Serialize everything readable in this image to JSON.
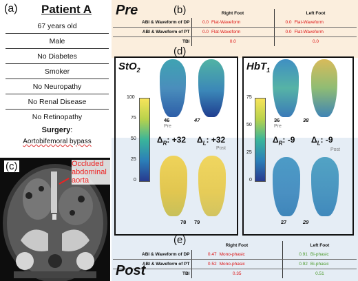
{
  "panel_a": {
    "label": "(a)",
    "title": "Patient A",
    "facts": [
      "67 years old",
      "Male",
      "No Diabetes",
      "Smoker",
      "No Neuropathy",
      "No Renal Disease",
      "No Retinopathy"
    ],
    "surgery_label": "Surgery",
    "surgery_colon": ":",
    "surgery_value": "Aortobifemoral bypass"
  },
  "panel_c": {
    "label": "(c)",
    "annotation": "Occluded abdominal aorta"
  },
  "pre": {
    "label": "Pre",
    "panel_label": "(b)",
    "columns": [
      "Right Foot",
      "Left Foot"
    ],
    "rows": [
      {
        "label": "ABI & Waveform of DP",
        "right_value": "0.0",
        "right_wave": "Flat-Waveform",
        "left_value": "0.0",
        "left_wave": "Flat-Waveform"
      },
      {
        "label": "ABI & Waveform of PT",
        "right_value": "0.0",
        "right_wave": "Flat-Waveform",
        "left_value": "0.0",
        "left_wave": "Flat-Waveform"
      },
      {
        "label": "TBI",
        "right_value": "0.0",
        "right_wave": "",
        "left_value": "0.0",
        "left_wave": ""
      }
    ]
  },
  "panel_d": {
    "label": "(d)",
    "sto2": {
      "title_main": "StO",
      "title_sub": "2",
      "scale_max": "100",
      "scale_ticks": [
        "100",
        "75",
        "50",
        "25",
        "0"
      ],
      "pre_right": "46",
      "pre_left": "47",
      "post_right": "78",
      "post_left": "79",
      "pre_tag": "Pre",
      "post_tag": "Post",
      "delta_r": "+32",
      "delta_l": "+32"
    },
    "hbt": {
      "title_main": "HbT",
      "title_sub": "1",
      "scale_ticks": [
        "75",
        "50",
        "25",
        "0"
      ],
      "pre_right": "36",
      "pre_left": "38",
      "post_right": "27",
      "post_left": "29",
      "pre_tag": "Pre",
      "post_tag": "Post",
      "delta_r": "-9",
      "delta_l": "-9"
    },
    "delta_symbol": "Δ",
    "r_sub": "R",
    "l_sub": "L",
    "colon": ":"
  },
  "post": {
    "label": "Post",
    "panel_label": "(e)",
    "columns": [
      "Right Foot",
      "Left Foot"
    ],
    "rows": [
      {
        "label": "ABI & Waveform of DP",
        "right_value": "0.47",
        "right_wave": "Mono-phasic",
        "left_value": "0.91",
        "left_wave": "Bi-phasic"
      },
      {
        "label": "ABI & Waveform of PT",
        "right_value": "0.52",
        "right_wave": "Mono-phasic",
        "left_value": "0.92",
        "left_wave": "Bi-phasic"
      },
      {
        "label": "TBI",
        "right_value": "0.35",
        "right_wave": "",
        "left_value": "0.51",
        "left_wave": ""
      }
    ]
  },
  "colors": {
    "pre_bg": "#fbeedd",
    "post_bg": "#e5edf5",
    "bad": "#d11111",
    "good": "#4a9a2a",
    "annotation": "#e22222"
  }
}
